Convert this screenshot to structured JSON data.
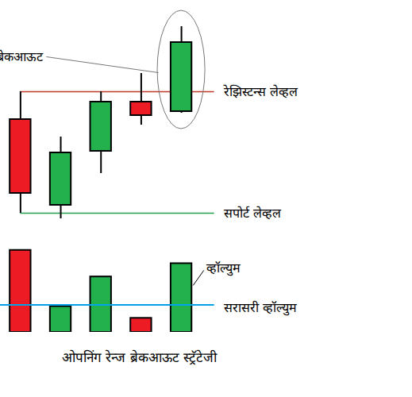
{
  "chart_data": [
    {
      "type": "candlestick",
      "categories": [
        null,
        null,
        null,
        null,
        null
      ],
      "open": [
        150,
        42,
        110,
        172,
        160
      ],
      "high": [
        185,
        128,
        185,
        208,
        267
      ],
      "low": [
        32,
        25,
        82,
        143,
        158
      ],
      "close": [
        57,
        108,
        172,
        155,
        247
      ],
      "colors": [
        "#ed1c24",
        "#22b14c",
        "#22b14c",
        "#ed1c24",
        "#22b14c"
      ],
      "ylim": [
        0,
        300
      ],
      "tick_labels": false,
      "levels": [
        {
          "label": "रेझिस्टन्स लेव्हल",
          "value": 185,
          "color": "#c0392b"
        },
        {
          "label": "सपोर्ट लेव्हल",
          "value": 32,
          "color": "#22a04c"
        }
      ],
      "breakout": {
        "label": "ब्रेकआऊट",
        "index": 4
      }
    },
    {
      "type": "bar",
      "categories": [
        null,
        null,
        null,
        null,
        null
      ],
      "values": [
        105,
        33,
        71,
        18,
        88
      ],
      "colors": [
        "#ed1c24",
        "#22b14c",
        "#22b14c",
        "#ed1c24",
        "#22b14c"
      ],
      "ylim": [
        0,
        120
      ],
      "tick_labels": false,
      "series_label": "व्हॉल्युम",
      "average": {
        "label": "सरासरी व्हॉल्युम",
        "value": 35,
        "color": "#00a2e8"
      }
    }
  ],
  "caption": "ओपनिंग रेन्ज ब्रेकआऊट स्ट्रॅटेजी"
}
